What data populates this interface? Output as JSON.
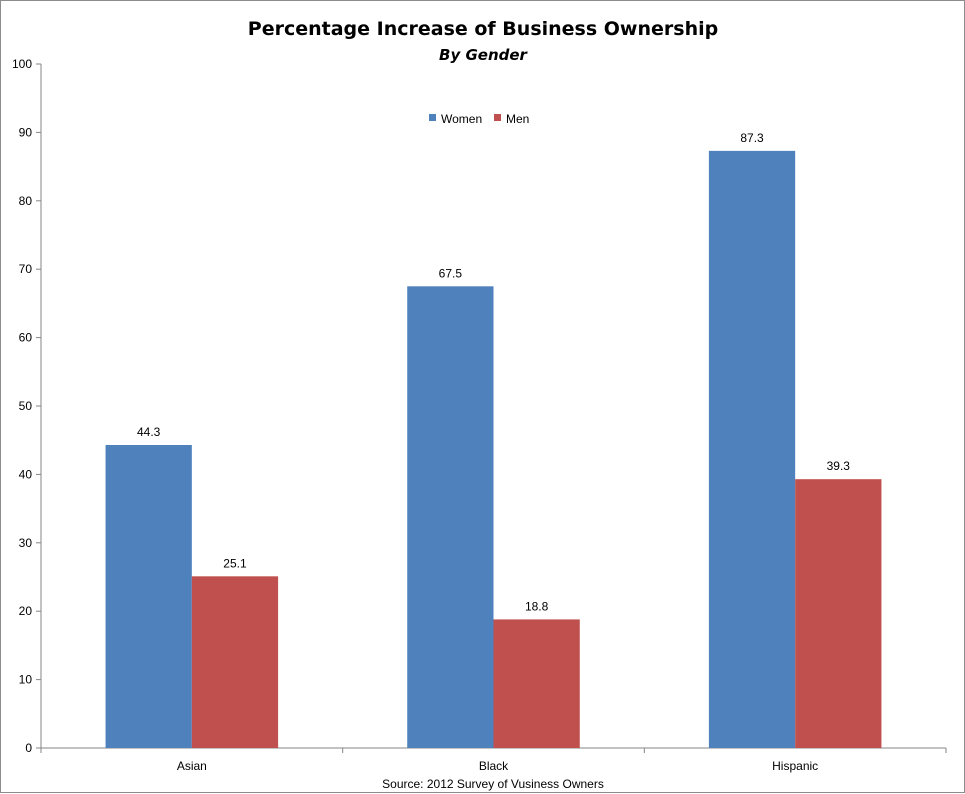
{
  "chart_data": {
    "type": "bar",
    "title": "Percentage Increase of Business Ownership",
    "subtitle": "By Gender",
    "source": "Source: 2012 Survey of Vusiness Owners",
    "categories": [
      "Asian",
      "Black",
      "Hispanic"
    ],
    "series": [
      {
        "name": "Women",
        "color": "#4f81bd",
        "values": [
          44.3,
          67.5,
          87.3
        ]
      },
      {
        "name": "Men",
        "color": "#c0504d",
        "values": [
          25.1,
          18.8,
          39.3
        ]
      }
    ],
    "data_labels": [
      [
        "44.3",
        "67.5",
        "87.3"
      ],
      [
        "25.1",
        "18.8",
        "39.3"
      ]
    ],
    "ylim": [
      0,
      100
    ],
    "yticks": [
      "0",
      "10",
      "20",
      "30",
      "40",
      "50",
      "60",
      "70",
      "80",
      "90",
      "100"
    ],
    "xlabel": "",
    "ylabel": "",
    "grid": false,
    "legend_position": "top-center"
  }
}
